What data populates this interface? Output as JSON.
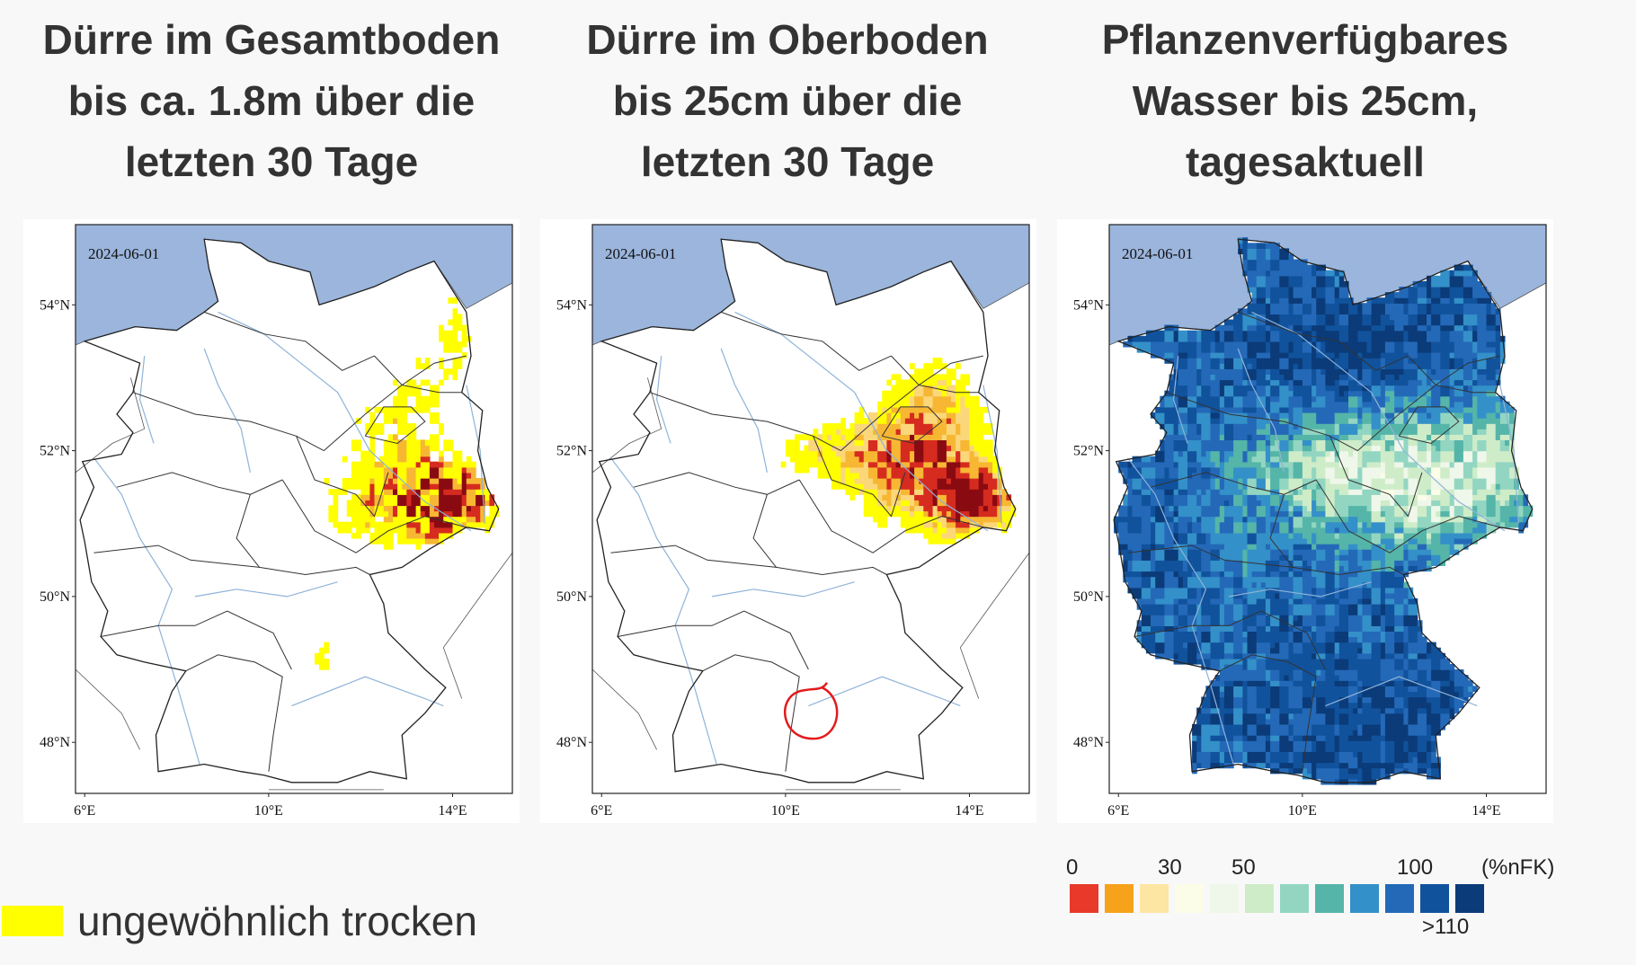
{
  "panels": [
    {
      "title_lines": [
        "Dürre im Gesamtboden",
        "bis ca. 1.8m über die",
        "letzten 30 Tage"
      ],
      "date": "2024-06-01",
      "mode": "drought_total"
    },
    {
      "title_lines": [
        "Dürre im Oberboden",
        "bis 25cm über die",
        "letzten 30 Tage"
      ],
      "date": "2024-06-01",
      "mode": "drought_top"
    },
    {
      "title_lines": [
        "Pflanzenverfügbares",
        "Wasser bis 25cm,",
        "tagesaktuell"
      ],
      "date": "2024-06-01",
      "mode": "water"
    }
  ],
  "axes": {
    "lat_labels": [
      "54°N",
      "52°N",
      "50°N",
      "48°N"
    ],
    "lon_labels": [
      "6°E",
      "10°E",
      "14°E"
    ]
  },
  "legend": {
    "label": "ungewöhnlich trocken",
    "color": "#ffff00"
  },
  "colorscale": {
    "ticks": [
      "0",
      "30",
      "50",
      "100",
      "(%nFK)"
    ],
    "extra": ">110",
    "colors": [
      "#e8392a",
      "#f7a21b",
      "#fde5a3",
      "#fbfde8",
      "#eef7e9",
      "#cfecc8",
      "#92d6c2",
      "#55b5a9",
      "#3490c8",
      "#2469b8",
      "#11529c",
      "#0b3b78"
    ]
  },
  "colors": {
    "sea": "#9bb5dc",
    "drought_yellow": "#ffff00",
    "drought_orange": "#f7b733",
    "drought_red": "#d62b1f",
    "drought_dark": "#8a0a12",
    "annotation_circle": "#e31a1c"
  }
}
